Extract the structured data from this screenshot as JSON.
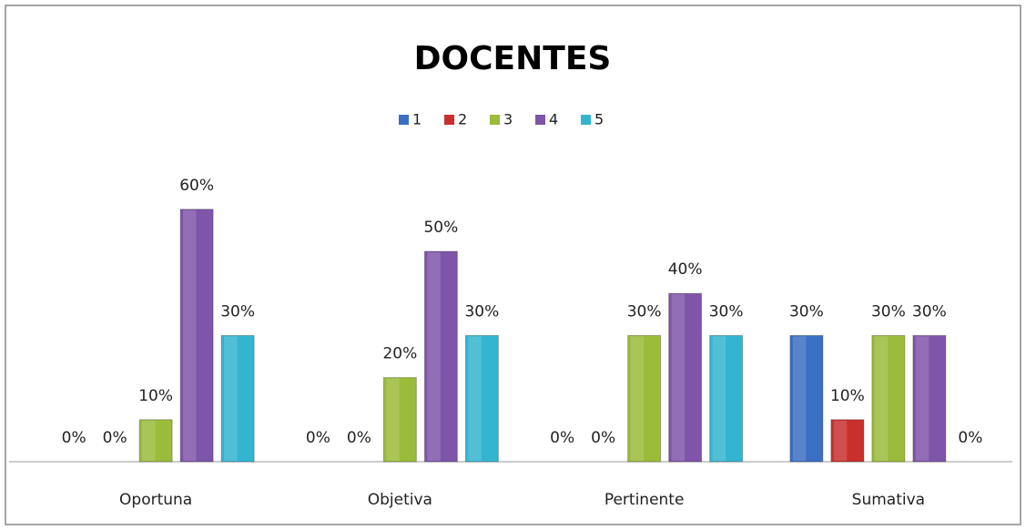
{
  "chart_data": {
    "type": "bar",
    "title": "DOCENTES",
    "categories": [
      "Oportuna",
      "Objetiva",
      "Pertinente",
      "Sumativa"
    ],
    "series": [
      {
        "name": "1",
        "color": "#3b6fc4",
        "values": [
          0,
          0,
          0,
          30
        ],
        "value_labels": [
          "0%",
          "0%",
          "0%",
          "30%"
        ]
      },
      {
        "name": "2",
        "color": "#c8302e",
        "values": [
          0,
          0,
          0,
          10
        ],
        "value_labels": [
          "0%",
          "0%",
          "0%",
          "10%"
        ]
      },
      {
        "name": "3",
        "color": "#9bbb3a",
        "values": [
          10,
          20,
          30,
          30
        ],
        "value_labels": [
          "10%",
          "20%",
          "30%",
          "30%"
        ]
      },
      {
        "name": "4",
        "color": "#7e55a8",
        "values": [
          60,
          50,
          40,
          30
        ],
        "value_labels": [
          "60%",
          "50%",
          "40%",
          "30%"
        ]
      },
      {
        "name": "5",
        "color": "#33b5d1",
        "values": [
          30,
          30,
          30,
          0
        ],
        "value_labels": [
          "30%",
          "30%",
          "30%",
          "0%"
        ]
      }
    ],
    "legend": "top"
  }
}
